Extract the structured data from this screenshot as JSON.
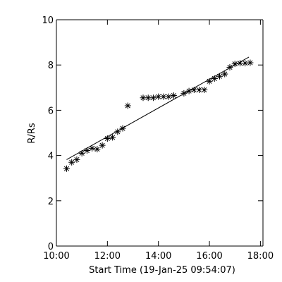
{
  "chart_data": {
    "type": "scatter",
    "title": "",
    "xlabel": "Start Time (19-Jan-25 09:54:07)",
    "ylabel": "R/Rs",
    "x_unit": "hours",
    "xlim": [
      10.0,
      18.1
    ],
    "ylim": [
      0,
      10
    ],
    "x_ticks": [
      {
        "value": 10,
        "label": "10:00"
      },
      {
        "value": 12,
        "label": "12:00"
      },
      {
        "value": 14,
        "label": "14:00"
      },
      {
        "value": 16,
        "label": "16:00"
      },
      {
        "value": 18,
        "label": "18:00"
      }
    ],
    "y_ticks": [
      0,
      2,
      4,
      6,
      8,
      10
    ],
    "grid": false,
    "legend": "none",
    "marker": "asterisk",
    "series": [
      {
        "x": [
          10.4,
          10.6,
          10.8,
          11.0,
          11.2,
          11.4,
          11.6,
          11.8,
          12.0,
          12.2,
          12.4,
          12.6,
          12.8,
          13.4,
          13.6,
          13.8,
          14.0,
          14.2,
          14.4,
          14.6,
          15.0,
          15.2,
          15.4,
          15.6,
          15.8,
          16.0,
          16.2,
          16.4,
          16.6,
          16.8,
          17.0,
          17.2,
          17.4,
          17.6
        ],
        "y": [
          3.42,
          3.7,
          3.82,
          4.1,
          4.22,
          4.32,
          4.28,
          4.45,
          4.75,
          4.8,
          5.05,
          5.2,
          6.2,
          6.55,
          6.55,
          6.55,
          6.6,
          6.6,
          6.6,
          6.65,
          6.75,
          6.85,
          6.9,
          6.9,
          6.9,
          7.28,
          7.4,
          7.5,
          7.6,
          7.9,
          8.05,
          8.08,
          8.08,
          8.1
        ]
      }
    ],
    "fit_line": {
      "x": [
        10.4,
        17.55
      ],
      "y": [
        3.82,
        8.35
      ]
    }
  }
}
